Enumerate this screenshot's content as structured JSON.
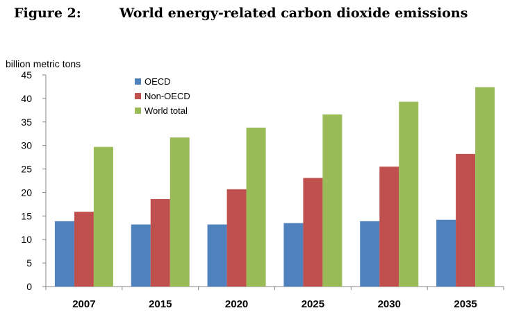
{
  "figure": {
    "number": "Figure 2:",
    "title": "World energy-related carbon dioxide emissions"
  },
  "chart_data": {
    "type": "bar",
    "title": "World energy-related carbon dioxide emissions",
    "ylabel": "billion metric tons",
    "xlabel": "",
    "categories": [
      "2007",
      "2015",
      "2020",
      "2025",
      "2030",
      "2035"
    ],
    "ylim": [
      0,
      45
    ],
    "yticks": [
      0,
      5,
      10,
      15,
      20,
      25,
      30,
      35,
      40,
      45
    ],
    "grid": false,
    "legend_position": "top-left",
    "series": [
      {
        "name": "OECD",
        "color": "#4f81bd",
        "values": [
          13.9,
          13.2,
          13.2,
          13.5,
          13.9,
          14.2
        ]
      },
      {
        "name": "Non-OECD",
        "color": "#c0504d",
        "values": [
          15.9,
          18.6,
          20.7,
          23.1,
          25.5,
          28.2
        ]
      },
      {
        "name": "World total",
        "color": "#9bbb59",
        "values": [
          29.7,
          31.7,
          33.8,
          36.6,
          39.3,
          42.4
        ]
      }
    ]
  }
}
